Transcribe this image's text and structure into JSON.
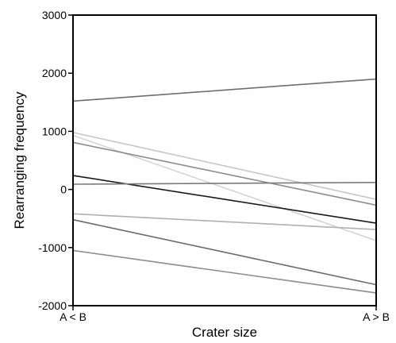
{
  "chart_data": {
    "type": "line",
    "title": "",
    "xlabel": "Crater size",
    "ylabel": "Rearranging frequency",
    "categories": [
      "A < B",
      "A > B"
    ],
    "ylim": [
      -2000,
      3000
    ],
    "yticks": [
      3000,
      2000,
      1000,
      0,
      -1000,
      -2000
    ],
    "grid": false,
    "series": [
      {
        "values": [
          1520,
          1900
        ],
        "color": "#6e6e6e"
      },
      {
        "values": [
          980,
          -170
        ],
        "color": "#c6c6c6"
      },
      {
        "values": [
          930,
          -880
        ],
        "color": "#d4d4d4"
      },
      {
        "values": [
          810,
          -270
        ],
        "color": "#8c8c8c"
      },
      {
        "values": [
          240,
          -580
        ],
        "color": "#1a1a1a"
      },
      {
        "values": [
          90,
          120
        ],
        "color": "#7a7a7a"
      },
      {
        "values": [
          -420,
          -690
        ],
        "color": "#b0b0b0"
      },
      {
        "values": [
          -520,
          -1640
        ],
        "color": "#6a6a6a"
      },
      {
        "values": [
          -1050,
          -1780
        ],
        "color": "#8c8c8c"
      }
    ]
  }
}
